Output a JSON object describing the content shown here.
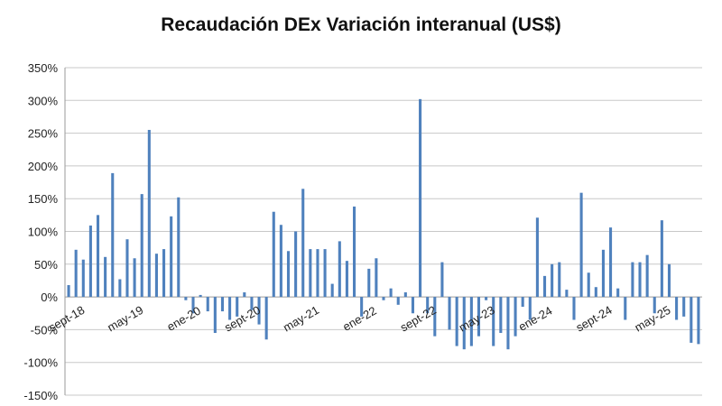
{
  "chart_data": {
    "type": "bar",
    "title": "Recaudación DEx Variación interanual (US$)",
    "xlabel": "",
    "ylabel": "",
    "ylim": [
      -150,
      350
    ],
    "y_ticks": [
      -150,
      -100,
      -50,
      0,
      50,
      100,
      150,
      200,
      250,
      300,
      350
    ],
    "y_tick_suffix": "%",
    "grid": "horizontal",
    "bar_color": "#4f81bd",
    "x_labels": [
      {
        "label": "sept-18",
        "index": 0
      },
      {
        "label": "may-19",
        "index": 8
      },
      {
        "label": "ene-20",
        "index": 16
      },
      {
        "label": "sept-20",
        "index": 24
      },
      {
        "label": "may-21",
        "index": 32
      },
      {
        "label": "ene-22",
        "index": 40
      },
      {
        "label": "sept-22",
        "index": 48
      },
      {
        "label": "may-23",
        "index": 56
      },
      {
        "label": "ene-24",
        "index": 64
      },
      {
        "label": "sept-24",
        "index": 72
      },
      {
        "label": "may-25",
        "index": 80
      }
    ],
    "values": [
      18,
      72,
      57,
      109,
      125,
      61,
      189,
      27,
      88,
      59,
      157,
      255,
      66,
      73,
      123,
      152,
      -5,
      -25,
      3,
      -22,
      -55,
      -22,
      -35,
      -30,
      7,
      -20,
      -42,
      -65,
      130,
      110,
      70,
      100,
      165,
      73,
      73,
      73,
      20,
      85,
      55,
      138,
      -30,
      43,
      59,
      -5,
      13,
      -12,
      7,
      -25,
      302,
      -25,
      -60,
      53,
      -50,
      -75,
      -80,
      -75,
      -60,
      -5,
      -75,
      -55,
      -80,
      -60,
      -15,
      -35,
      121,
      32,
      50,
      53,
      11,
      -35,
      159,
      37,
      15,
      72,
      106,
      13,
      -35,
      53,
      53,
      64,
      -25,
      117,
      50,
      -35,
      -30,
      -70,
      -72
    ]
  }
}
